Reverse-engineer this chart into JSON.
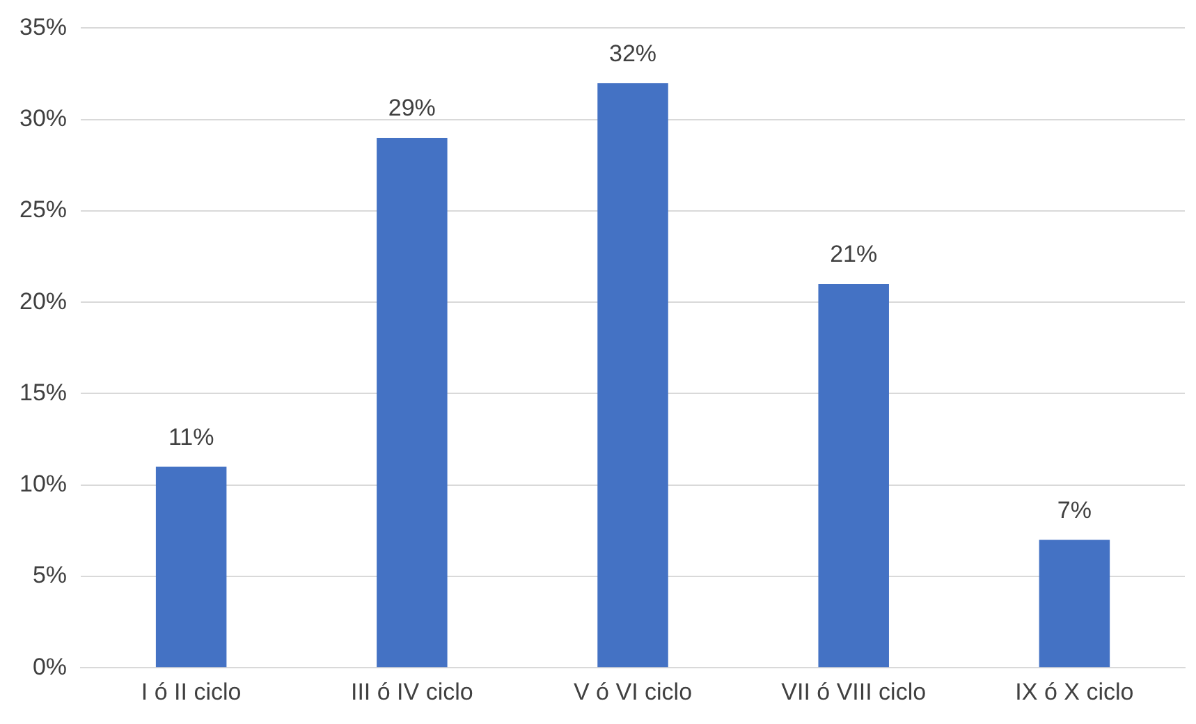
{
  "chart_data": {
    "type": "bar",
    "categories": [
      "I ó II ciclo",
      "III ó IV ciclo",
      "V ó VI ciclo",
      "VII ó VIII ciclo",
      "IX ó X ciclo"
    ],
    "values": [
      11,
      29,
      32,
      21,
      7
    ],
    "value_labels": [
      "11%",
      "29%",
      "32%",
      "21%",
      "7%"
    ],
    "color": "#4472c4",
    "ylim": [
      0,
      35
    ],
    "yticks": [
      {
        "value": 0,
        "label": "0%"
      },
      {
        "value": 5,
        "label": "5%"
      },
      {
        "value": 10,
        "label": "10%"
      },
      {
        "value": 15,
        "label": "15%"
      },
      {
        "value": 20,
        "label": "20%"
      },
      {
        "value": 25,
        "label": "25%"
      },
      {
        "value": 30,
        "label": "30%"
      },
      {
        "value": 35,
        "label": "35%"
      }
    ],
    "grid": "y"
  }
}
